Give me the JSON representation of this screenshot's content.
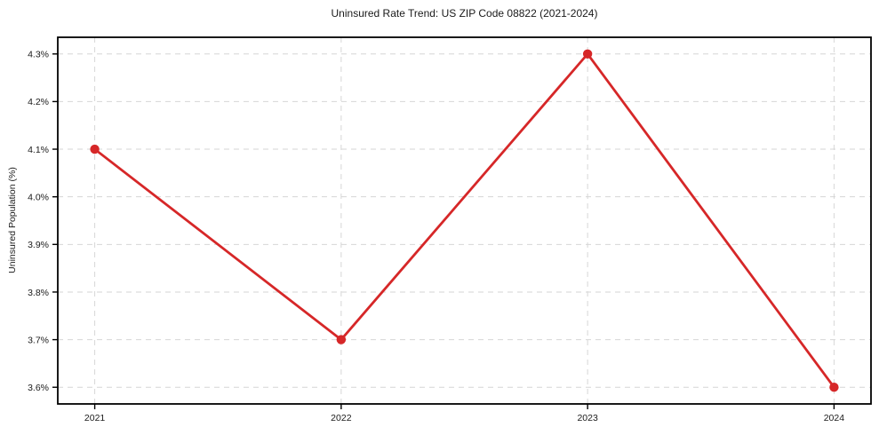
{
  "chart_data": {
    "type": "line",
    "title": "Uninsured Rate Trend: US ZIP Code 08822 (2021-2024)",
    "xlabel": "",
    "ylabel": "Uninsured Population (%)",
    "x": [
      2021,
      2022,
      2023,
      2024
    ],
    "values": [
      4.1,
      3.7,
      4.3,
      3.6
    ],
    "xtick_labels": [
      "2021",
      "2022",
      "2023",
      "2024"
    ],
    "ytick_values": [
      3.6,
      3.7,
      3.8,
      3.9,
      4.0,
      4.1,
      4.2,
      4.3
    ],
    "ytick_labels": [
      "3.6%",
      "3.7%",
      "3.8%",
      "3.9%",
      "4.0%",
      "4.1%",
      "4.2%",
      "4.3%"
    ],
    "xlim": [
      2020.85,
      2024.15
    ],
    "ylim": [
      3.565,
      4.335
    ],
    "grid": true,
    "grid_style": "dashed",
    "legend": "none",
    "line_color": "#d62728",
    "marker_color": "#d62728",
    "grid_color": "#d6d6d6",
    "frame_color": "#000000",
    "background_color": "#ffffff"
  }
}
